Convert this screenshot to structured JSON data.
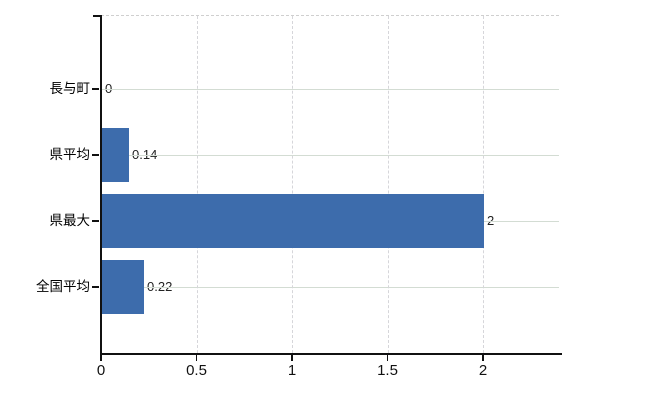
{
  "chart_data": {
    "type": "bar",
    "orientation": "horizontal",
    "categories": [
      "長与町",
      "県平均",
      "県最大",
      "全国平均"
    ],
    "values": [
      0,
      0.14,
      2,
      0.22
    ],
    "value_labels": [
      "0",
      "0.14",
      "2",
      "0.22"
    ],
    "x_ticks": [
      0,
      0.5,
      1,
      1.5,
      2
    ],
    "x_tick_labels": [
      "0",
      "0.5",
      "1",
      "1.5",
      "2"
    ],
    "xlim": [
      0,
      2.4
    ],
    "grid": true,
    "legend_position": "none",
    "colors": {
      "bar": "#3d6cac",
      "axis": "#111111",
      "h_gridline": "#d3dcd3",
      "v_gridline": "#d6d6da",
      "top_border": "#cfcfcf",
      "category_text": "#000000",
      "tick_text": "#111111",
      "value_text": "#222222"
    }
  }
}
